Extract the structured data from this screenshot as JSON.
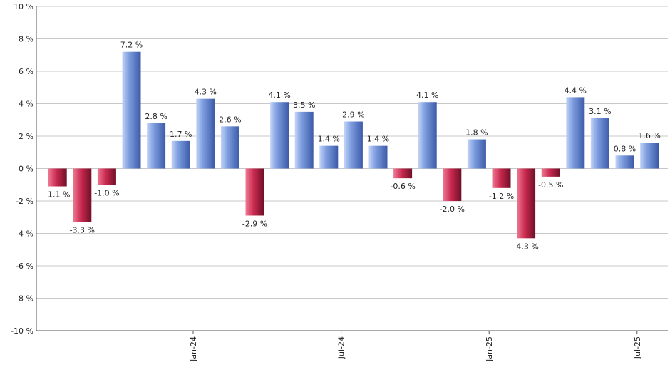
{
  "chart_data": {
    "type": "bar",
    "title": "",
    "xlabel": "",
    "ylabel": "",
    "ylim": [
      -10,
      10
    ],
    "yticks": [
      -10,
      -8,
      -6,
      -4,
      -2,
      0,
      2,
      4,
      6,
      8,
      10
    ],
    "ytick_labels": [
      "-10 %",
      "-8 %",
      "-6 %",
      "-4 %",
      "-2 %",
      "0 %",
      "2 %",
      "4 %",
      "6 %",
      "8 %",
      "10 %"
    ],
    "grid": true,
    "legend": "none",
    "values": [
      -1.1,
      -3.3,
      -1.0,
      7.2,
      2.8,
      1.7,
      4.3,
      2.6,
      -2.9,
      4.1,
      3.5,
      1.4,
      2.9,
      1.4,
      -0.6,
      4.1,
      -2.0,
      1.8,
      -1.2,
      -4.3,
      -0.5,
      4.4,
      3.1,
      0.8,
      1.6
    ],
    "data_labels": [
      "-1.1 %",
      "-3.3 %",
      "-1.0 %",
      "7.2 %",
      "2.8 %",
      "1.7 %",
      "4.3 %",
      "2.6 %",
      "-2.9 %",
      "4.1 %",
      "3.5 %",
      "1.4 %",
      "2.9 %",
      "1.4 %",
      "-0.6 %",
      "4.1 %",
      "-2.0 %",
      "1.8 %",
      "-1.2 %",
      "-4.3 %",
      "-0.5 %",
      "4.4 %",
      "3.1 %",
      "0.8 %",
      "1.6 %"
    ],
    "x_tick_labels": [
      {
        "label": "Jan-24",
        "index": 5.5
      },
      {
        "label": "Jul-24",
        "index": 11.5
      },
      {
        "label": "Jan-25",
        "index": 17.5
      },
      {
        "label": "Jul-25",
        "index": 23.5
      }
    ],
    "colors": {
      "positive_light": "#c3d4f8",
      "positive_mid": "#7f9fe0",
      "positive_dark": "#3c5aa8",
      "negative_light": "#f07a93",
      "negative_mid": "#c8294f",
      "negative_dark": "#6e0f26"
    }
  }
}
